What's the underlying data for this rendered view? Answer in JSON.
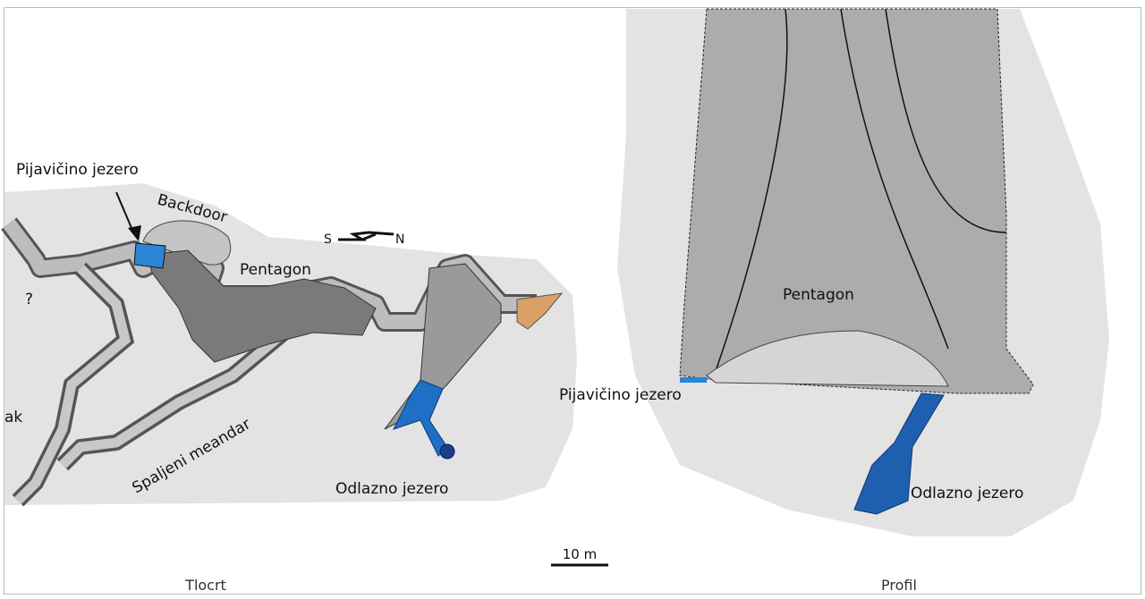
{
  "plan": {
    "caption": "Tlocrt",
    "labels": {
      "lake_west": "Pijavičino jezero",
      "backdoor": "Backdoor",
      "pentagon": "Pentagon",
      "meander": "Spaljeni meandar",
      "lake_outlet": "Odlazno jezero",
      "unknown": "?",
      "cut_label": "ak"
    },
    "compass": {
      "south": "S",
      "north": "N"
    }
  },
  "profile": {
    "caption": "Profil",
    "labels": {
      "pentagon": "Pentagon",
      "lake_west": "Pijavičino jezero",
      "lake_outlet": "Odlazno jezero"
    }
  },
  "scale_bar": "10 m"
}
